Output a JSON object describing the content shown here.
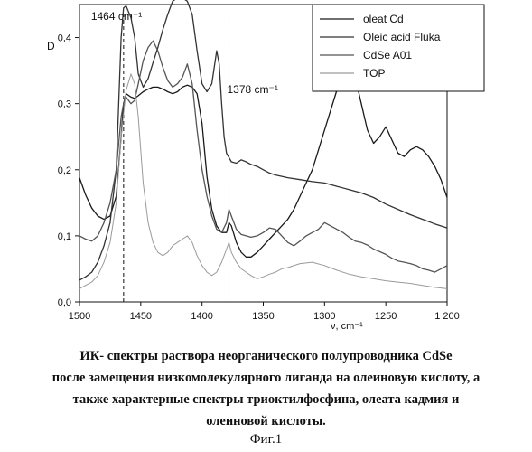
{
  "chart_data": {
    "type": "line",
    "xlabel": "ν, cm⁻¹",
    "ylabel": "D",
    "xlim": [
      1500,
      1200
    ],
    "ylim": [
      0.0,
      0.45
    ],
    "x_ticks": [
      1500,
      1450,
      1400,
      1350,
      1300,
      1250,
      1200
    ],
    "x_tick_labels": [
      "1500",
      "1450",
      "1400",
      "1350",
      "1300",
      "1250",
      "1 200"
    ],
    "y_ticks": [
      0.0,
      0.1,
      0.2,
      0.3,
      0.4
    ],
    "y_tick_labels": [
      "0,0",
      "0,1",
      "0,2",
      "0,3",
      "0,4"
    ],
    "grid": false,
    "legend_position": "top-right",
    "annotations": [
      {
        "text": "1464 cm⁻¹",
        "x": 1464
      },
      {
        "text": "1378 cm⁻¹",
        "x": 1378
      }
    ],
    "series": [
      {
        "name": "oleat Cd",
        "color": "#1a1a1a",
        "x": [
          1500,
          1495,
          1490,
          1485,
          1480,
          1475,
          1470,
          1466,
          1464,
          1462,
          1458,
          1455,
          1452,
          1448,
          1444,
          1440,
          1436,
          1432,
          1428,
          1424,
          1420,
          1416,
          1412,
          1408,
          1404,
          1400,
          1396,
          1392,
          1388,
          1384,
          1380,
          1378,
          1376,
          1372,
          1368,
          1364,
          1360,
          1355,
          1350,
          1345,
          1340,
          1335,
          1330,
          1325,
          1320,
          1315,
          1310,
          1305,
          1300,
          1295,
          1290,
          1285,
          1280,
          1275,
          1270,
          1265,
          1260,
          1255,
          1250,
          1245,
          1240,
          1235,
          1230,
          1225,
          1220,
          1215,
          1210,
          1205,
          1200
        ],
        "y": [
          0.188,
          0.162,
          0.142,
          0.13,
          0.125,
          0.13,
          0.16,
          0.25,
          0.3,
          0.315,
          0.31,
          0.308,
          0.312,
          0.318,
          0.322,
          0.325,
          0.325,
          0.322,
          0.318,
          0.315,
          0.318,
          0.325,
          0.328,
          0.325,
          0.315,
          0.27,
          0.19,
          0.14,
          0.115,
          0.105,
          0.105,
          0.12,
          0.115,
          0.09,
          0.075,
          0.068,
          0.068,
          0.075,
          0.085,
          0.095,
          0.105,
          0.115,
          0.125,
          0.14,
          0.16,
          0.18,
          0.2,
          0.23,
          0.26,
          0.29,
          0.32,
          0.35,
          0.36,
          0.34,
          0.3,
          0.26,
          0.24,
          0.25,
          0.265,
          0.245,
          0.225,
          0.22,
          0.23,
          0.235,
          0.23,
          0.22,
          0.205,
          0.185,
          0.158
        ]
      },
      {
        "name": "Oleic acid Fluka",
        "color": "#333333",
        "x": [
          1500,
          1495,
          1490,
          1485,
          1480,
          1475,
          1470,
          1466,
          1464,
          1462,
          1458,
          1455,
          1452,
          1448,
          1444,
          1440,
          1436,
          1432,
          1428,
          1424,
          1420,
          1416,
          1412,
          1408,
          1404,
          1400,
          1396,
          1392,
          1390,
          1388,
          1386,
          1384,
          1382,
          1380,
          1376,
          1372,
          1368,
          1364,
          1360,
          1355,
          1350,
          1345,
          1340,
          1335,
          1330,
          1320,
          1310,
          1300,
          1290,
          1280,
          1270,
          1260,
          1250,
          1240,
          1230,
          1220,
          1210,
          1200
        ],
        "y": [
          0.033,
          0.038,
          0.045,
          0.06,
          0.085,
          0.12,
          0.2,
          0.4,
          0.445,
          0.448,
          0.43,
          0.4,
          0.345,
          0.325,
          0.338,
          0.362,
          0.385,
          0.412,
          0.435,
          0.455,
          0.46,
          0.46,
          0.455,
          0.435,
          0.38,
          0.33,
          0.318,
          0.33,
          0.355,
          0.38,
          0.36,
          0.3,
          0.25,
          0.225,
          0.212,
          0.21,
          0.215,
          0.212,
          0.208,
          0.205,
          0.2,
          0.195,
          0.192,
          0.19,
          0.188,
          0.185,
          0.182,
          0.18,
          0.175,
          0.17,
          0.165,
          0.158,
          0.148,
          0.14,
          0.132,
          0.125,
          0.118,
          0.112
        ]
      },
      {
        "name": "CdSe A01",
        "color": "#555555",
        "x": [
          1500,
          1495,
          1490,
          1485,
          1480,
          1475,
          1470,
          1466,
          1464,
          1462,
          1458,
          1455,
          1452,
          1448,
          1444,
          1440,
          1436,
          1432,
          1428,
          1424,
          1420,
          1416,
          1412,
          1408,
          1404,
          1400,
          1396,
          1392,
          1388,
          1384,
          1380,
          1378,
          1376,
          1372,
          1368,
          1364,
          1360,
          1355,
          1350,
          1345,
          1340,
          1335,
          1330,
          1325,
          1320,
          1315,
          1310,
          1305,
          1300,
          1295,
          1290,
          1285,
          1280,
          1275,
          1270,
          1265,
          1260,
          1255,
          1250,
          1245,
          1240,
          1235,
          1230,
          1225,
          1220,
          1215,
          1210,
          1205,
          1200
        ],
        "y": [
          0.1,
          0.095,
          0.092,
          0.1,
          0.12,
          0.15,
          0.2,
          0.28,
          0.3,
          0.31,
          0.3,
          0.305,
          0.33,
          0.365,
          0.385,
          0.395,
          0.38,
          0.355,
          0.335,
          0.325,
          0.33,
          0.34,
          0.36,
          0.33,
          0.26,
          0.2,
          0.16,
          0.13,
          0.11,
          0.105,
          0.12,
          0.14,
          0.13,
          0.11,
          0.102,
          0.1,
          0.098,
          0.1,
          0.105,
          0.112,
          0.11,
          0.1,
          0.09,
          0.085,
          0.092,
          0.1,
          0.105,
          0.11,
          0.12,
          0.115,
          0.11,
          0.105,
          0.098,
          0.092,
          0.09,
          0.086,
          0.08,
          0.076,
          0.072,
          0.066,
          0.062,
          0.06,
          0.058,
          0.055,
          0.05,
          0.048,
          0.045,
          0.05,
          0.055
        ]
      },
      {
        "name": "TOP",
        "color": "#9a9a9a",
        "x": [
          1500,
          1495,
          1490,
          1485,
          1480,
          1475,
          1470,
          1466,
          1462,
          1458,
          1455,
          1452,
          1448,
          1444,
          1440,
          1436,
          1432,
          1428,
          1424,
          1420,
          1416,
          1412,
          1408,
          1404,
          1400,
          1396,
          1392,
          1388,
          1384,
          1380,
          1378,
          1376,
          1372,
          1368,
          1364,
          1360,
          1355,
          1350,
          1345,
          1340,
          1335,
          1330,
          1320,
          1310,
          1300,
          1290,
          1280,
          1270,
          1260,
          1250,
          1240,
          1230,
          1220,
          1210,
          1200
        ],
        "y": [
          0.02,
          0.025,
          0.03,
          0.04,
          0.06,
          0.09,
          0.15,
          0.25,
          0.32,
          0.345,
          0.33,
          0.28,
          0.18,
          0.12,
          0.09,
          0.075,
          0.07,
          0.075,
          0.085,
          0.09,
          0.095,
          0.1,
          0.09,
          0.07,
          0.055,
          0.045,
          0.04,
          0.045,
          0.06,
          0.08,
          0.09,
          0.075,
          0.06,
          0.05,
          0.045,
          0.04,
          0.035,
          0.038,
          0.042,
          0.045,
          0.05,
          0.052,
          0.058,
          0.06,
          0.055,
          0.048,
          0.042,
          0.038,
          0.035,
          0.032,
          0.03,
          0.028,
          0.025,
          0.022,
          0.02
        ]
      }
    ]
  },
  "caption": {
    "line1": "ИК- спектры раствора неорганического полупроводника CdSe",
    "line2": "после замещения низкомолекулярного лиганда на олеиновую кислоту, а",
    "line3": "также характерные спектры триоктилфосфина, олеата кадмия и",
    "line4": "олеиновой кислоты.",
    "figure_number": "Фиг.1"
  }
}
